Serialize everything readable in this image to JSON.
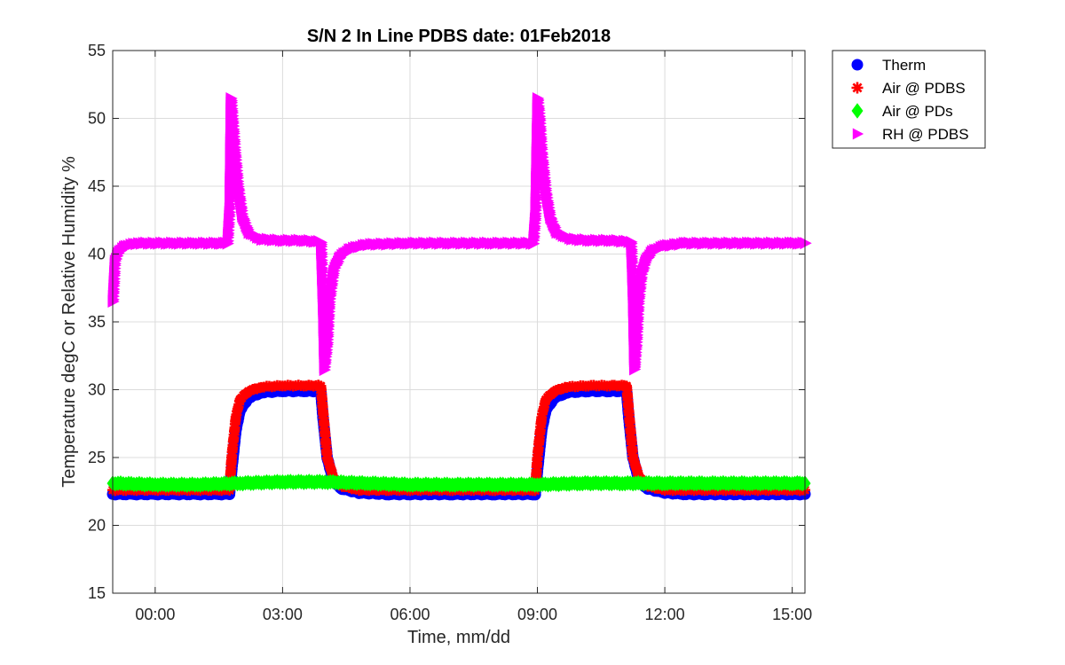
{
  "chart_data": {
    "type": "scatter",
    "title": "S/N 2 In Line PDBS date: 01Feb2018",
    "xlabel": "Time, mm/dd",
    "ylabel": "Temperature degC or Relative Humidity %",
    "ylim": [
      15,
      55
    ],
    "xlim_hours": [
      -1.0,
      15.3
    ],
    "xticks": [
      {
        "hour": 0,
        "label": "00:00"
      },
      {
        "hour": 3,
        "label": "03:00"
      },
      {
        "hour": 6,
        "label": "06:00"
      },
      {
        "hour": 9,
        "label": "09:00"
      },
      {
        "hour": 12,
        "label": "12:00"
      },
      {
        "hour": 15,
        "label": "15:00"
      }
    ],
    "yticks": [
      15,
      20,
      25,
      30,
      35,
      40,
      45,
      50,
      55
    ],
    "grid": true,
    "legend_position": "outside top-right",
    "series": [
      {
        "name": "Therm",
        "marker": "circle",
        "color": "#0000ff",
        "points": [
          [
            -1.0,
            22.3
          ],
          [
            -0.5,
            22.3
          ],
          [
            0,
            22.3
          ],
          [
            0.5,
            22.3
          ],
          [
            1,
            22.3
          ],
          [
            1.5,
            22.3
          ],
          [
            1.75,
            22.3
          ],
          [
            1.8,
            24.0
          ],
          [
            1.9,
            27.0
          ],
          [
            2.0,
            28.5
          ],
          [
            2.2,
            29.4
          ],
          [
            2.5,
            29.8
          ],
          [
            3.0,
            29.9
          ],
          [
            3.5,
            29.9
          ],
          [
            3.9,
            29.9
          ],
          [
            3.95,
            28.0
          ],
          [
            4.05,
            25.0
          ],
          [
            4.2,
            23.2
          ],
          [
            4.4,
            22.7
          ],
          [
            4.8,
            22.4
          ],
          [
            5.5,
            22.3
          ],
          [
            6,
            22.3
          ],
          [
            7,
            22.3
          ],
          [
            8,
            22.3
          ],
          [
            8.95,
            22.3
          ],
          [
            9.0,
            24.0
          ],
          [
            9.1,
            27.0
          ],
          [
            9.2,
            28.5
          ],
          [
            9.4,
            29.4
          ],
          [
            9.7,
            29.8
          ],
          [
            10.2,
            29.9
          ],
          [
            10.7,
            29.9
          ],
          [
            11.1,
            29.9
          ],
          [
            11.15,
            28.0
          ],
          [
            11.25,
            25.0
          ],
          [
            11.4,
            23.2
          ],
          [
            11.6,
            22.7
          ],
          [
            12,
            22.4
          ],
          [
            12.5,
            22.3
          ],
          [
            13,
            22.3
          ],
          [
            14,
            22.3
          ],
          [
            15,
            22.3
          ],
          [
            15.3,
            22.3
          ]
        ]
      },
      {
        "name": "Air @ PDBS",
        "marker": "asterisk",
        "color": "#ff0000",
        "points": [
          [
            -1.0,
            22.6
          ],
          [
            -0.5,
            22.6
          ],
          [
            0,
            22.6
          ],
          [
            0.5,
            22.6
          ],
          [
            1,
            22.6
          ],
          [
            1.5,
            22.6
          ],
          [
            1.75,
            22.6
          ],
          [
            1.8,
            25.0
          ],
          [
            1.9,
            28.0
          ],
          [
            2.0,
            29.3
          ],
          [
            2.2,
            29.9
          ],
          [
            2.5,
            30.2
          ],
          [
            3.0,
            30.3
          ],
          [
            3.5,
            30.3
          ],
          [
            3.9,
            30.3
          ],
          [
            3.95,
            28.5
          ],
          [
            4.05,
            25.0
          ],
          [
            4.2,
            23.5
          ],
          [
            4.4,
            22.9
          ],
          [
            4.8,
            22.6
          ],
          [
            5.5,
            22.6
          ],
          [
            6,
            22.6
          ],
          [
            7,
            22.6
          ],
          [
            8,
            22.6
          ],
          [
            8.95,
            22.6
          ],
          [
            9.0,
            25.0
          ],
          [
            9.1,
            28.0
          ],
          [
            9.2,
            29.3
          ],
          [
            9.4,
            29.9
          ],
          [
            9.7,
            30.2
          ],
          [
            10.2,
            30.3
          ],
          [
            10.7,
            30.3
          ],
          [
            11.1,
            30.3
          ],
          [
            11.15,
            28.5
          ],
          [
            11.25,
            25.0
          ],
          [
            11.4,
            23.5
          ],
          [
            11.6,
            22.9
          ],
          [
            12,
            22.6
          ],
          [
            12.5,
            22.6
          ],
          [
            13,
            22.6
          ],
          [
            14,
            22.6
          ],
          [
            15,
            22.6
          ],
          [
            15.3,
            22.6
          ]
        ]
      },
      {
        "name": "Air @ PDs",
        "marker": "diamond",
        "color": "#00ff00",
        "points": [
          [
            -1.0,
            23.1
          ],
          [
            0,
            23.0
          ],
          [
            1,
            23.0
          ],
          [
            2,
            23.1
          ],
          [
            3,
            23.2
          ],
          [
            4,
            23.2
          ],
          [
            5,
            23.1
          ],
          [
            6,
            23.0
          ],
          [
            7,
            23.0
          ],
          [
            8,
            23.0
          ],
          [
            9,
            23.0
          ],
          [
            10,
            23.1
          ],
          [
            11,
            23.1
          ],
          [
            12,
            23.1
          ],
          [
            13,
            23.1
          ],
          [
            14,
            23.1
          ],
          [
            15,
            23.1
          ],
          [
            15.3,
            23.1
          ]
        ]
      },
      {
        "name": "RH @ PDBS",
        "marker": "triangle-right",
        "color": "#ff00ff",
        "points": [
          [
            -1.0,
            36.5
          ],
          [
            -0.95,
            39.5
          ],
          [
            -0.85,
            40.2
          ],
          [
            -0.7,
            40.6
          ],
          [
            -0.4,
            40.8
          ],
          [
            0,
            40.8
          ],
          [
            0.5,
            40.8
          ],
          [
            1,
            40.8
          ],
          [
            1.5,
            40.8
          ],
          [
            1.7,
            40.8
          ],
          [
            1.75,
            43.5
          ],
          [
            1.78,
            51.5
          ],
          [
            1.82,
            50.0
          ],
          [
            1.88,
            47.5
          ],
          [
            1.95,
            45.0
          ],
          [
            2.05,
            42.8
          ],
          [
            2.2,
            41.6
          ],
          [
            2.5,
            41.1
          ],
          [
            3.0,
            41.0
          ],
          [
            3.5,
            41.0
          ],
          [
            3.9,
            40.9
          ],
          [
            3.92,
            39.0
          ],
          [
            3.95,
            36.0
          ],
          [
            3.98,
            31.5
          ],
          [
            4.05,
            33.5
          ],
          [
            4.1,
            36.5
          ],
          [
            4.2,
            38.8
          ],
          [
            4.35,
            39.8
          ],
          [
            4.6,
            40.4
          ],
          [
            5.0,
            40.7
          ],
          [
            6,
            40.8
          ],
          [
            7,
            40.8
          ],
          [
            8,
            40.8
          ],
          [
            8.9,
            40.8
          ],
          [
            8.95,
            43.0
          ],
          [
            9.0,
            51.5
          ],
          [
            9.05,
            50.0
          ],
          [
            9.1,
            47.5
          ],
          [
            9.2,
            44.5
          ],
          [
            9.3,
            42.7
          ],
          [
            9.45,
            41.6
          ],
          [
            9.8,
            41.1
          ],
          [
            10.3,
            41.0
          ],
          [
            10.8,
            41.0
          ],
          [
            11.2,
            40.9
          ],
          [
            11.22,
            39.5
          ],
          [
            11.25,
            36.5
          ],
          [
            11.28,
            31.5
          ],
          [
            11.33,
            33.5
          ],
          [
            11.38,
            36.5
          ],
          [
            11.45,
            38.5
          ],
          [
            11.55,
            39.5
          ],
          [
            11.7,
            40.2
          ],
          [
            12,
            40.6
          ],
          [
            12.5,
            40.8
          ],
          [
            13,
            40.8
          ],
          [
            14,
            40.8
          ],
          [
            15,
            40.8
          ],
          [
            15.3,
            40.8
          ]
        ]
      }
    ]
  }
}
